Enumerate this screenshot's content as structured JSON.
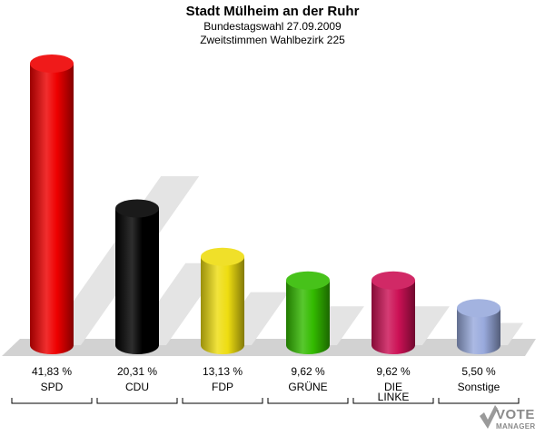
{
  "header": {
    "title": "Stadt Mülheim an der Ruhr",
    "subtitle1": "Bundestagswahl 27.09.2009",
    "subtitle2": "Zweitstimmen Wahlbezirk 225"
  },
  "logo": {
    "line1": "VOTE",
    "line2": "MANAGER"
  },
  "chart_data": {
    "type": "bar",
    "title": "Stadt Mülheim an der Ruhr",
    "subtitle": [
      "Bundestagswahl 27.09.2009",
      "Zweitstimmen Wahlbezirk 225"
    ],
    "categories": [
      "SPD",
      "CDU",
      "FDP",
      "GRÜNE",
      "DIE LINKE",
      "Sonstige"
    ],
    "category_lines": [
      [
        "SPD"
      ],
      [
        "CDU"
      ],
      [
        "FDP"
      ],
      [
        "GRÜNE"
      ],
      [
        "DIE",
        "LINKE"
      ],
      [
        "Sonstige"
      ]
    ],
    "values": [
      41.83,
      20.31,
      13.13,
      9.62,
      9.62,
      5.5
    ],
    "value_labels": [
      "41,83 %",
      "20,31 %",
      "13,13 %",
      "9,62 %",
      "9,62 %",
      "5,50 %"
    ],
    "colors": [
      "#ee0000",
      "#000000",
      "#eedd11",
      "#33bb00",
      "#cc1155",
      "#99aadd"
    ],
    "unit": "%",
    "grid": false,
    "legend": "none",
    "ylim": [
      0,
      41.83
    ]
  }
}
